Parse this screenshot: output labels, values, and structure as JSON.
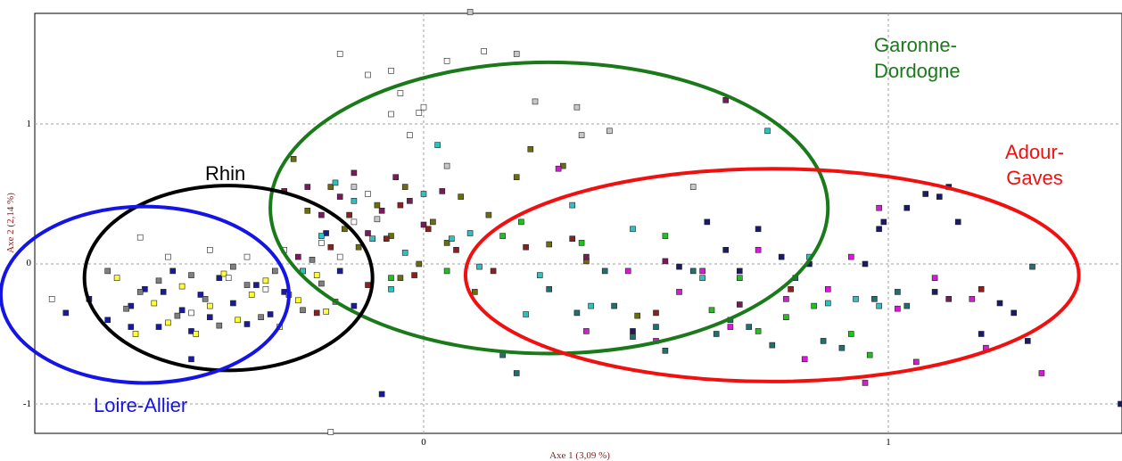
{
  "chart_data": {
    "type": "scatter",
    "title": "",
    "xlabel": "Axe 1 (3,09 %)",
    "ylabel": "Axe 2 (2,14 %)",
    "xticks": [
      "0",
      "1"
    ],
    "yticks": [
      "1",
      "0",
      "-1"
    ],
    "xlim": [
      -0.84,
      1.5
    ],
    "ylim": [
      -1.23,
      1.78
    ],
    "grid": true,
    "grid_style": "dashed",
    "marker": "square",
    "groups": [
      {
        "label": "Garonne-\nDordogne",
        "color": "#1a7a1a",
        "ellipse": {
          "cx": 0.27,
          "cy": 0.4,
          "rx": 0.6,
          "ry": 1.04
        }
      },
      {
        "label": "Adour-\nGaves",
        "color": "#f01010",
        "ellipse": {
          "cx": 0.75,
          "cy": -0.08,
          "rx": 0.66,
          "ry": 0.76
        }
      },
      {
        "label": "Rhin",
        "color": "#000000",
        "ellipse": {
          "cx": -0.42,
          "cy": -0.1,
          "rx": 0.31,
          "ry": 0.66
        }
      },
      {
        "label": "Loire-Allier",
        "color": "#1414e6",
        "ellipse": {
          "cx": -0.6,
          "cy": -0.22,
          "rx": 0.31,
          "ry": 0.63
        }
      }
    ],
    "series": [
      {
        "color": "#1a1aa0",
        "points": [
          [
            -0.77,
            -0.35
          ],
          [
            -0.72,
            -0.25
          ],
          [
            -0.68,
            -0.4
          ],
          [
            -0.63,
            -0.3
          ],
          [
            -0.6,
            -0.18
          ],
          [
            -0.57,
            -0.45
          ],
          [
            -0.54,
            -0.05
          ],
          [
            -0.52,
            -0.33
          ],
          [
            -0.5,
            -0.68
          ],
          [
            -0.48,
            -0.22
          ],
          [
            -0.46,
            -0.38
          ],
          [
            -0.44,
            -0.1
          ],
          [
            -0.41,
            -0.28
          ],
          [
            -0.38,
            -0.43
          ],
          [
            -0.36,
            -0.15
          ],
          [
            -0.33,
            -0.36
          ],
          [
            -0.3,
            -0.2
          ],
          [
            -0.21,
            0.22
          ],
          [
            -0.18,
            -0.05
          ],
          [
            -0.15,
            -0.3
          ],
          [
            -0.09,
            -0.93
          ],
          [
            -0.63,
            -0.45
          ],
          [
            -0.56,
            -0.2
          ],
          [
            -0.5,
            -0.48
          ]
        ]
      },
      {
        "color": "#ffff33",
        "points": [
          [
            -0.66,
            -0.1
          ],
          [
            -0.62,
            -0.5
          ],
          [
            -0.58,
            -0.28
          ],
          [
            -0.55,
            -0.42
          ],
          [
            -0.52,
            -0.16
          ],
          [
            -0.49,
            -0.5
          ],
          [
            -0.46,
            -0.3
          ],
          [
            -0.43,
            -0.07
          ],
          [
            -0.4,
            -0.4
          ],
          [
            -0.37,
            -0.22
          ],
          [
            -0.34,
            -0.12
          ],
          [
            -0.31,
            -0.45
          ],
          [
            -0.27,
            -0.26
          ],
          [
            -0.23,
            -0.08
          ],
          [
            -0.21,
            -0.34
          ]
        ]
      },
      {
        "color": "#808080",
        "points": [
          [
            -0.68,
            -0.05
          ],
          [
            -0.64,
            -0.32
          ],
          [
            -0.61,
            -0.2
          ],
          [
            -0.57,
            -0.12
          ],
          [
            -0.53,
            -0.37
          ],
          [
            -0.5,
            -0.08
          ],
          [
            -0.47,
            -0.25
          ],
          [
            -0.44,
            -0.44
          ],
          [
            -0.41,
            -0.02
          ],
          [
            -0.38,
            -0.15
          ],
          [
            -0.35,
            -0.38
          ],
          [
            -0.32,
            -0.05
          ],
          [
            -0.29,
            -0.22
          ],
          [
            -0.26,
            -0.33
          ],
          [
            -0.24,
            0.03
          ],
          [
            -0.22,
            -0.14
          ],
          [
            -0.19,
            -0.27
          ]
        ]
      },
      {
        "color": "#ffffff",
        "points": [
          [
            -0.8,
            -0.25
          ],
          [
            -0.61,
            0.19
          ],
          [
            -0.55,
            0.05
          ],
          [
            -0.5,
            -0.35
          ],
          [
            -0.46,
            0.1
          ],
          [
            -0.42,
            -0.1
          ],
          [
            -0.38,
            0.05
          ],
          [
            -0.34,
            -0.18
          ],
          [
            -0.3,
            0.1
          ],
          [
            -0.26,
            -0.05
          ],
          [
            -0.22,
            0.15
          ],
          [
            -0.18,
            0.05
          ],
          [
            -0.15,
            0.3
          ],
          [
            -0.12,
            0.5
          ],
          [
            -0.18,
            1.5
          ],
          [
            -0.12,
            1.35
          ],
          [
            -0.07,
            1.38
          ],
          [
            -0.05,
            1.22
          ],
          [
            -0.01,
            1.08
          ],
          [
            0.05,
            1.45
          ],
          [
            0.13,
            1.52
          ],
          [
            -0.2,
            -1.2
          ],
          [
            -0.07,
            1.07
          ],
          [
            0.0,
            1.12
          ],
          [
            -0.03,
            0.92
          ]
        ]
      },
      {
        "color": "#c8c8c8",
        "points": [
          [
            -0.15,
            0.55
          ],
          [
            -0.1,
            0.32
          ],
          [
            0.05,
            0.7
          ],
          [
            0.1,
            1.8
          ],
          [
            0.2,
            1.5
          ],
          [
            0.24,
            1.16
          ],
          [
            0.33,
            1.12
          ],
          [
            0.34,
            0.92
          ],
          [
            0.4,
            0.95
          ],
          [
            0.58,
            0.55
          ]
        ]
      },
      {
        "color": "#6b6b10",
        "points": [
          [
            -0.28,
            0.75
          ],
          [
            -0.25,
            0.38
          ],
          [
            -0.2,
            0.55
          ],
          [
            -0.17,
            0.25
          ],
          [
            -0.14,
            0.12
          ],
          [
            -0.1,
            0.42
          ],
          [
            -0.07,
            0.2
          ],
          [
            -0.04,
            0.55
          ],
          [
            -0.01,
            0.0
          ],
          [
            0.02,
            0.3
          ],
          [
            0.05,
            0.15
          ],
          [
            0.08,
            0.48
          ],
          [
            0.11,
            -0.2
          ],
          [
            0.14,
            0.35
          ],
          [
            0.2,
            0.62
          ],
          [
            0.23,
            0.82
          ],
          [
            0.27,
            0.14
          ],
          [
            0.3,
            0.7
          ],
          [
            0.35,
            0.02
          ],
          [
            0.46,
            -0.37
          ],
          [
            -0.05,
            -0.1
          ]
        ]
      },
      {
        "color": "#7a1a5a",
        "points": [
          [
            -0.25,
            0.55
          ],
          [
            -0.22,
            0.35
          ],
          [
            -0.18,
            0.48
          ],
          [
            -0.15,
            0.65
          ],
          [
            -0.12,
            0.22
          ],
          [
            -0.09,
            0.38
          ],
          [
            -0.06,
            0.62
          ],
          [
            -0.03,
            0.45
          ],
          [
            0.0,
            0.28
          ],
          [
            0.04,
            0.52
          ],
          [
            -0.3,
            0.52
          ],
          [
            -0.27,
            0.05
          ],
          [
            0.65,
            1.17
          ],
          [
            0.35,
            0.05
          ],
          [
            0.52,
            0.02
          ],
          [
            0.68,
            -0.29
          ],
          [
            1.13,
            -0.25
          ]
        ]
      },
      {
        "color": "#8a2020",
        "points": [
          [
            -0.23,
            -0.35
          ],
          [
            -0.2,
            0.12
          ],
          [
            -0.16,
            0.35
          ],
          [
            -0.12,
            -0.15
          ],
          [
            -0.08,
            0.18
          ],
          [
            -0.05,
            0.42
          ],
          [
            -0.02,
            -0.08
          ],
          [
            0.01,
            0.25
          ],
          [
            0.07,
            0.1
          ],
          [
            0.15,
            -0.05
          ],
          [
            0.22,
            0.12
          ],
          [
            0.32,
            0.18
          ],
          [
            0.5,
            -0.35
          ],
          [
            0.79,
            -0.18
          ],
          [
            1.2,
            -0.18
          ]
        ]
      },
      {
        "color": "#30c0c0",
        "points": [
          [
            -0.26,
            -0.05
          ],
          [
            -0.22,
            0.2
          ],
          [
            -0.19,
            0.58
          ],
          [
            -0.15,
            0.45
          ],
          [
            -0.11,
            0.18
          ],
          [
            -0.07,
            -0.18
          ],
          [
            -0.04,
            0.08
          ],
          [
            0.0,
            0.5
          ],
          [
            0.03,
            0.85
          ],
          [
            0.06,
            0.18
          ],
          [
            0.1,
            0.22
          ],
          [
            0.12,
            -0.02
          ],
          [
            0.22,
            -0.36
          ],
          [
            0.25,
            -0.08
          ],
          [
            0.32,
            0.42
          ],
          [
            0.36,
            -0.3
          ],
          [
            0.45,
            0.25
          ],
          [
            0.6,
            -0.1
          ],
          [
            0.74,
            0.95
          ],
          [
            0.83,
            0.05
          ],
          [
            0.87,
            -0.28
          ],
          [
            0.93,
            -0.25
          ],
          [
            0.98,
            -0.3
          ]
        ]
      },
      {
        "color": "#20c020",
        "points": [
          [
            -0.07,
            -0.1
          ],
          [
            0.05,
            -0.05
          ],
          [
            0.17,
            0.2
          ],
          [
            0.21,
            0.3
          ],
          [
            0.34,
            0.15
          ],
          [
            0.52,
            0.2
          ],
          [
            0.62,
            -0.33
          ],
          [
            0.68,
            -0.1
          ],
          [
            0.72,
            -0.48
          ],
          [
            0.78,
            -0.38
          ],
          [
            0.84,
            -0.3
          ],
          [
            0.92,
            -0.5
          ],
          [
            0.96,
            -0.65
          ]
        ]
      },
      {
        "color": "#207070",
        "points": [
          [
            0.17,
            -0.65
          ],
          [
            0.2,
            -0.78
          ],
          [
            0.27,
            -0.18
          ],
          [
            0.33,
            -0.35
          ],
          [
            0.39,
            -0.05
          ],
          [
            0.41,
            -0.3
          ],
          [
            0.45,
            -0.52
          ],
          [
            0.5,
            -0.45
          ],
          [
            0.52,
            -0.62
          ],
          [
            0.58,
            -0.05
          ],
          [
            0.63,
            -0.5
          ],
          [
            0.66,
            -0.4
          ],
          [
            0.7,
            -0.45
          ],
          [
            0.75,
            -0.58
          ],
          [
            0.8,
            -0.1
          ],
          [
            0.86,
            -0.55
          ],
          [
            0.9,
            -0.6
          ],
          [
            0.97,
            -0.25
          ],
          [
            1.02,
            -0.2
          ],
          [
            1.04,
            -0.3
          ],
          [
            1.31,
            -0.02
          ]
        ]
      },
      {
        "color": "#d81ad8",
        "points": [
          [
            0.29,
            0.68
          ],
          [
            0.35,
            -0.48
          ],
          [
            0.44,
            -0.05
          ],
          [
            0.5,
            -0.55
          ],
          [
            0.55,
            -0.2
          ],
          [
            0.6,
            -0.05
          ],
          [
            0.66,
            -0.45
          ],
          [
            0.72,
            0.1
          ],
          [
            0.78,
            -0.25
          ],
          [
            0.82,
            -0.68
          ],
          [
            0.87,
            -0.18
          ],
          [
            0.92,
            0.05
          ],
          [
            0.95,
            -0.85
          ],
          [
            0.98,
            0.4
          ],
          [
            1.02,
            -0.32
          ],
          [
            1.06,
            -0.7
          ],
          [
            1.1,
            -0.1
          ],
          [
            1.18,
            -0.25
          ],
          [
            1.21,
            -0.6
          ],
          [
            1.33,
            -0.78
          ]
        ]
      },
      {
        "color": "#1a1a66",
        "points": [
          [
            0.45,
            -0.48
          ],
          [
            0.55,
            -0.02
          ],
          [
            0.61,
            0.3
          ],
          [
            0.65,
            0.1
          ],
          [
            0.68,
            -0.05
          ],
          [
            0.72,
            0.25
          ],
          [
            0.77,
            0.05
          ],
          [
            0.83,
            0.0
          ],
          [
            0.95,
            0.0
          ],
          [
            0.98,
            0.25
          ],
          [
            1.04,
            0.4
          ],
          [
            1.08,
            0.5
          ],
          [
            1.11,
            0.48
          ],
          [
            1.13,
            0.55
          ],
          [
            1.15,
            0.3
          ],
          [
            1.1,
            -0.2
          ],
          [
            1.2,
            -0.5
          ],
          [
            1.24,
            -0.28
          ],
          [
            1.27,
            -0.35
          ],
          [
            1.5,
            -1.0
          ],
          [
            1.3,
            -0.55
          ],
          [
            0.99,
            0.3
          ]
        ]
      }
    ]
  }
}
